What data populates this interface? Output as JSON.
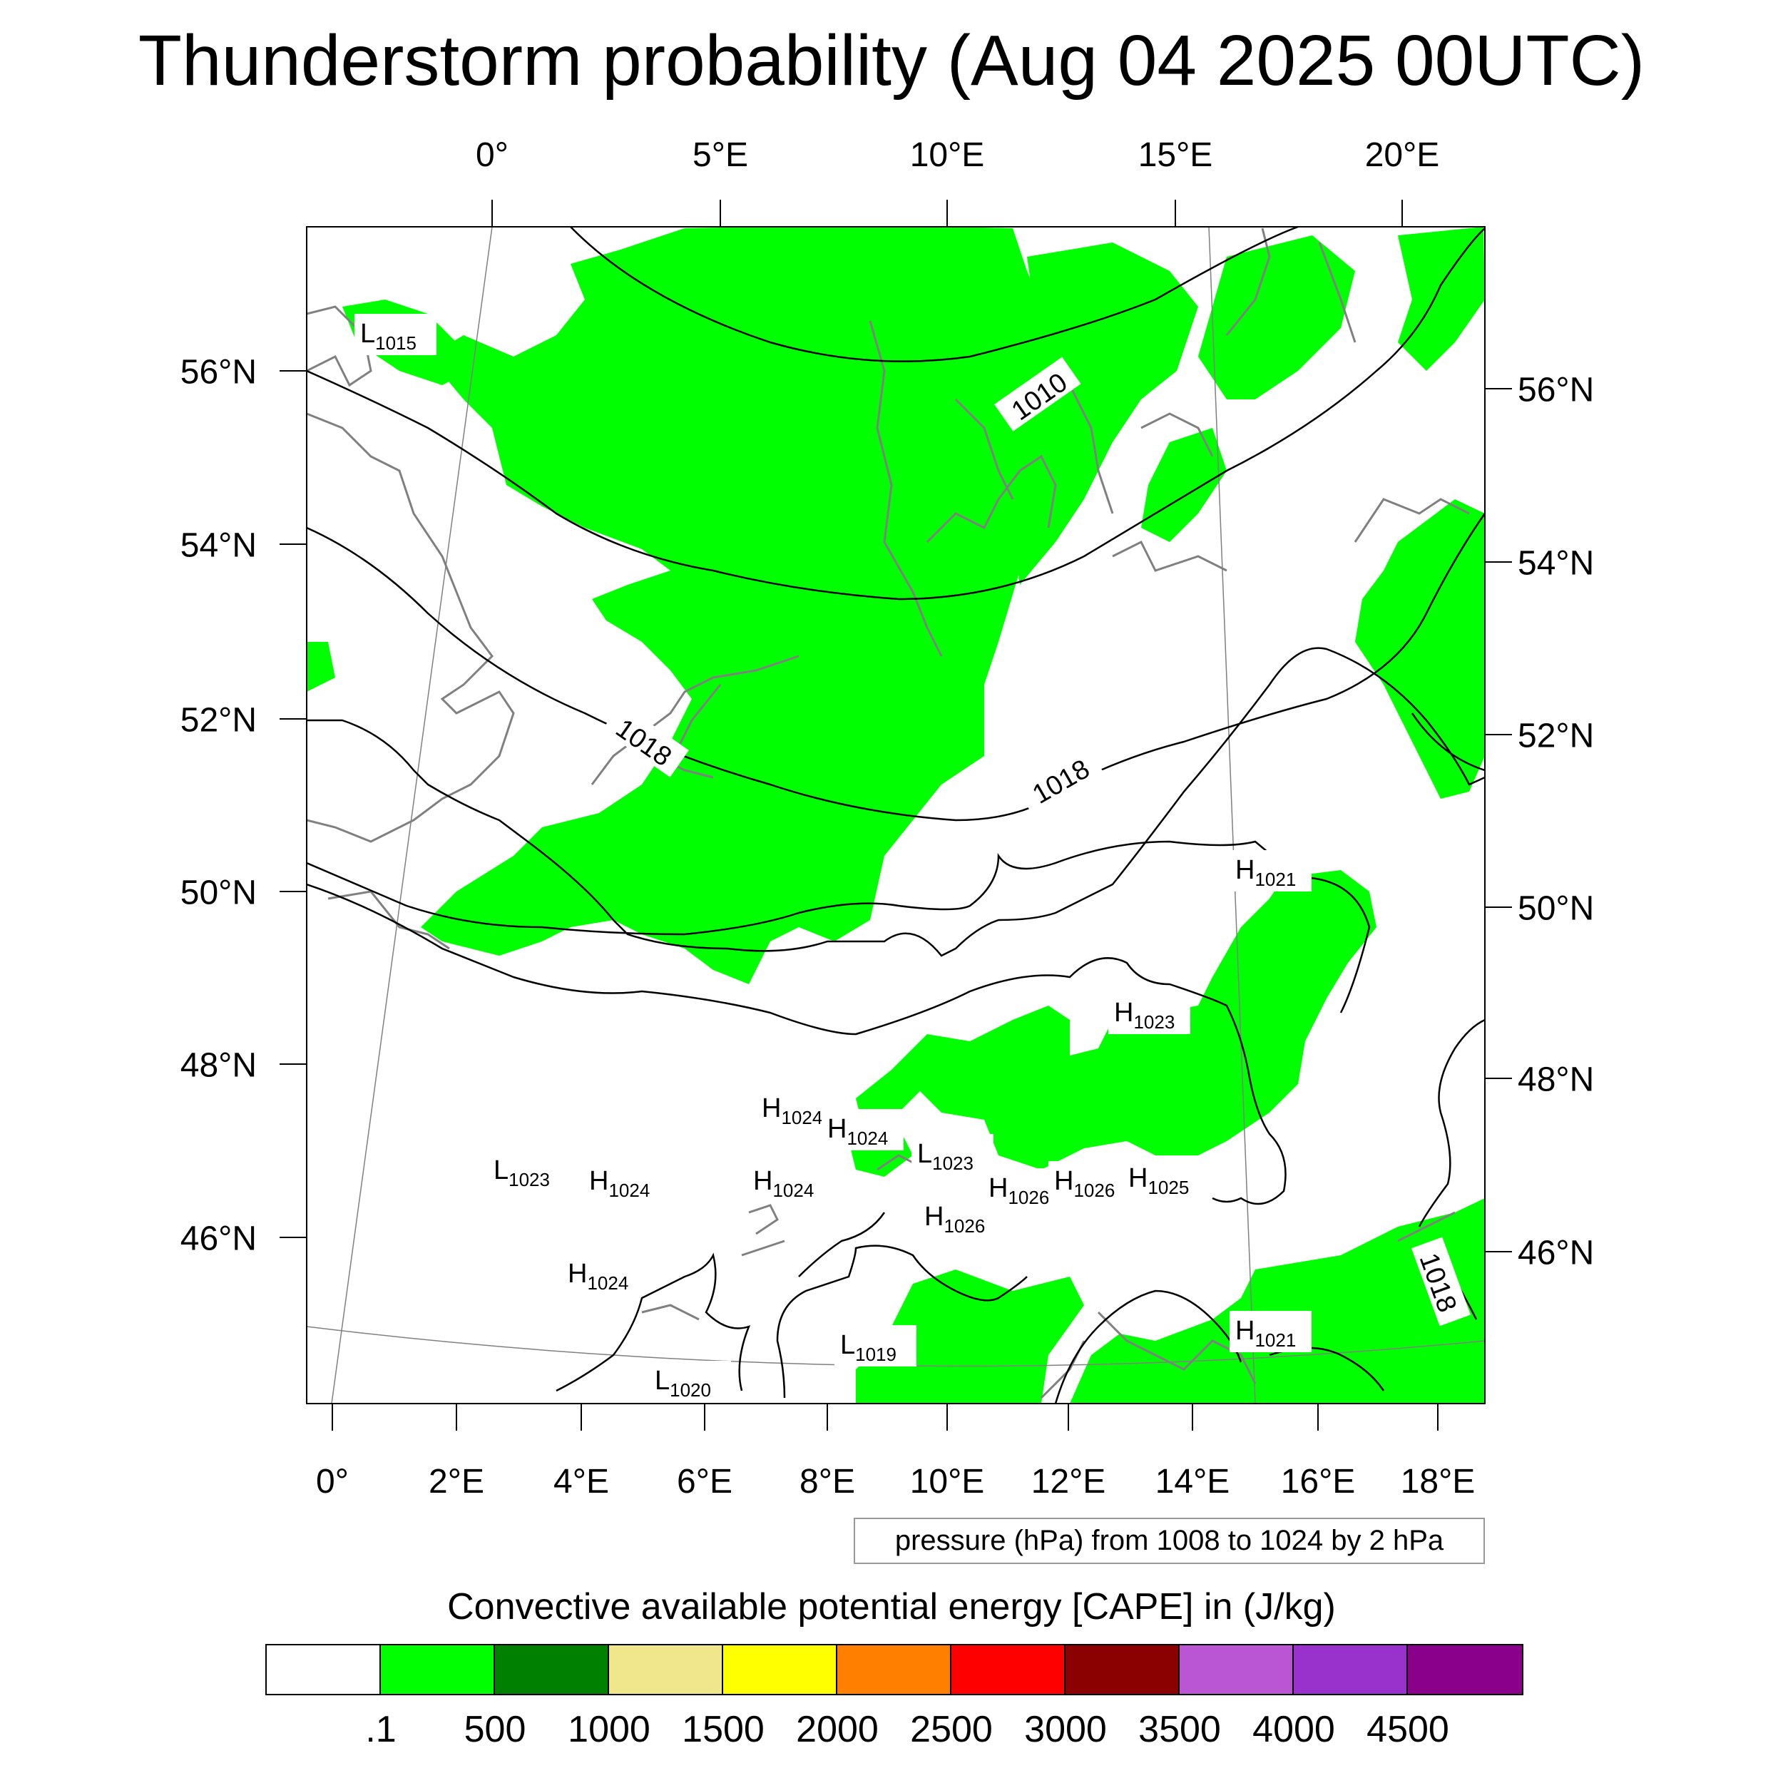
{
  "title": "Thunderstorm probability (Aug 04 2025 00UTC)",
  "axes": {
    "top_lon_labels": [
      "0°",
      "5°E",
      "10°E",
      "15°E",
      "20°E"
    ],
    "bottom_lon_labels": [
      "0°",
      "2°E",
      "4°E",
      "6°E",
      "8°E",
      "10°E",
      "12°E",
      "14°E",
      "16°E",
      "18°E"
    ],
    "left_lat_labels": [
      "56°N",
      "54°N",
      "52°N",
      "50°N",
      "48°N",
      "46°N"
    ],
    "right_lat_labels": [
      "56°N",
      "54°N",
      "52°N",
      "50°N",
      "48°N",
      "46°N"
    ]
  },
  "pressure_note": "pressure (hPa) from 1008 to 1024 by 2 hPa",
  "contour_labels": [
    "1010",
    "1018",
    "1018",
    "1018"
  ],
  "pressure_centers": [
    {
      "letter": "L",
      "value": "1015"
    },
    {
      "letter": "H",
      "value": "1021"
    },
    {
      "letter": "H",
      "value": "1023"
    },
    {
      "letter": "H",
      "value": "1024"
    },
    {
      "letter": "H",
      "value": "1024"
    },
    {
      "letter": "L",
      "value": "1023"
    },
    {
      "letter": "H",
      "value": "1024"
    },
    {
      "letter": "L",
      "value": "1023"
    },
    {
      "letter": "H",
      "value": "1024"
    },
    {
      "letter": "H",
      "value": "1026"
    },
    {
      "letter": "H",
      "value": "1026"
    },
    {
      "letter": "H",
      "value": "1025"
    },
    {
      "letter": "H",
      "value": "1026"
    },
    {
      "letter": "H",
      "value": "1024"
    },
    {
      "letter": "H",
      "value": "1021"
    },
    {
      "letter": "L",
      "value": "1019"
    },
    {
      "letter": "L",
      "value": "1020"
    }
  ],
  "colorbar": {
    "title": "Convective available potential energy [CAPE] in (J/kg)",
    "colors": [
      "#ffffff",
      "#00ff00",
      "#008000",
      "#f0e68c",
      "#ffff00",
      "#ff8000",
      "#ff0000",
      "#8b0000",
      "#ba55d3",
      "#9932cc",
      "#8b008b"
    ],
    "labels": [
      ".1",
      "500",
      "1000",
      "1500",
      "2000",
      "2500",
      "3000",
      "3500",
      "4000",
      "4500"
    ]
  },
  "colors": {
    "cape_fill": "#00ff00",
    "coastline": "#808080",
    "isobar": "#000000"
  }
}
